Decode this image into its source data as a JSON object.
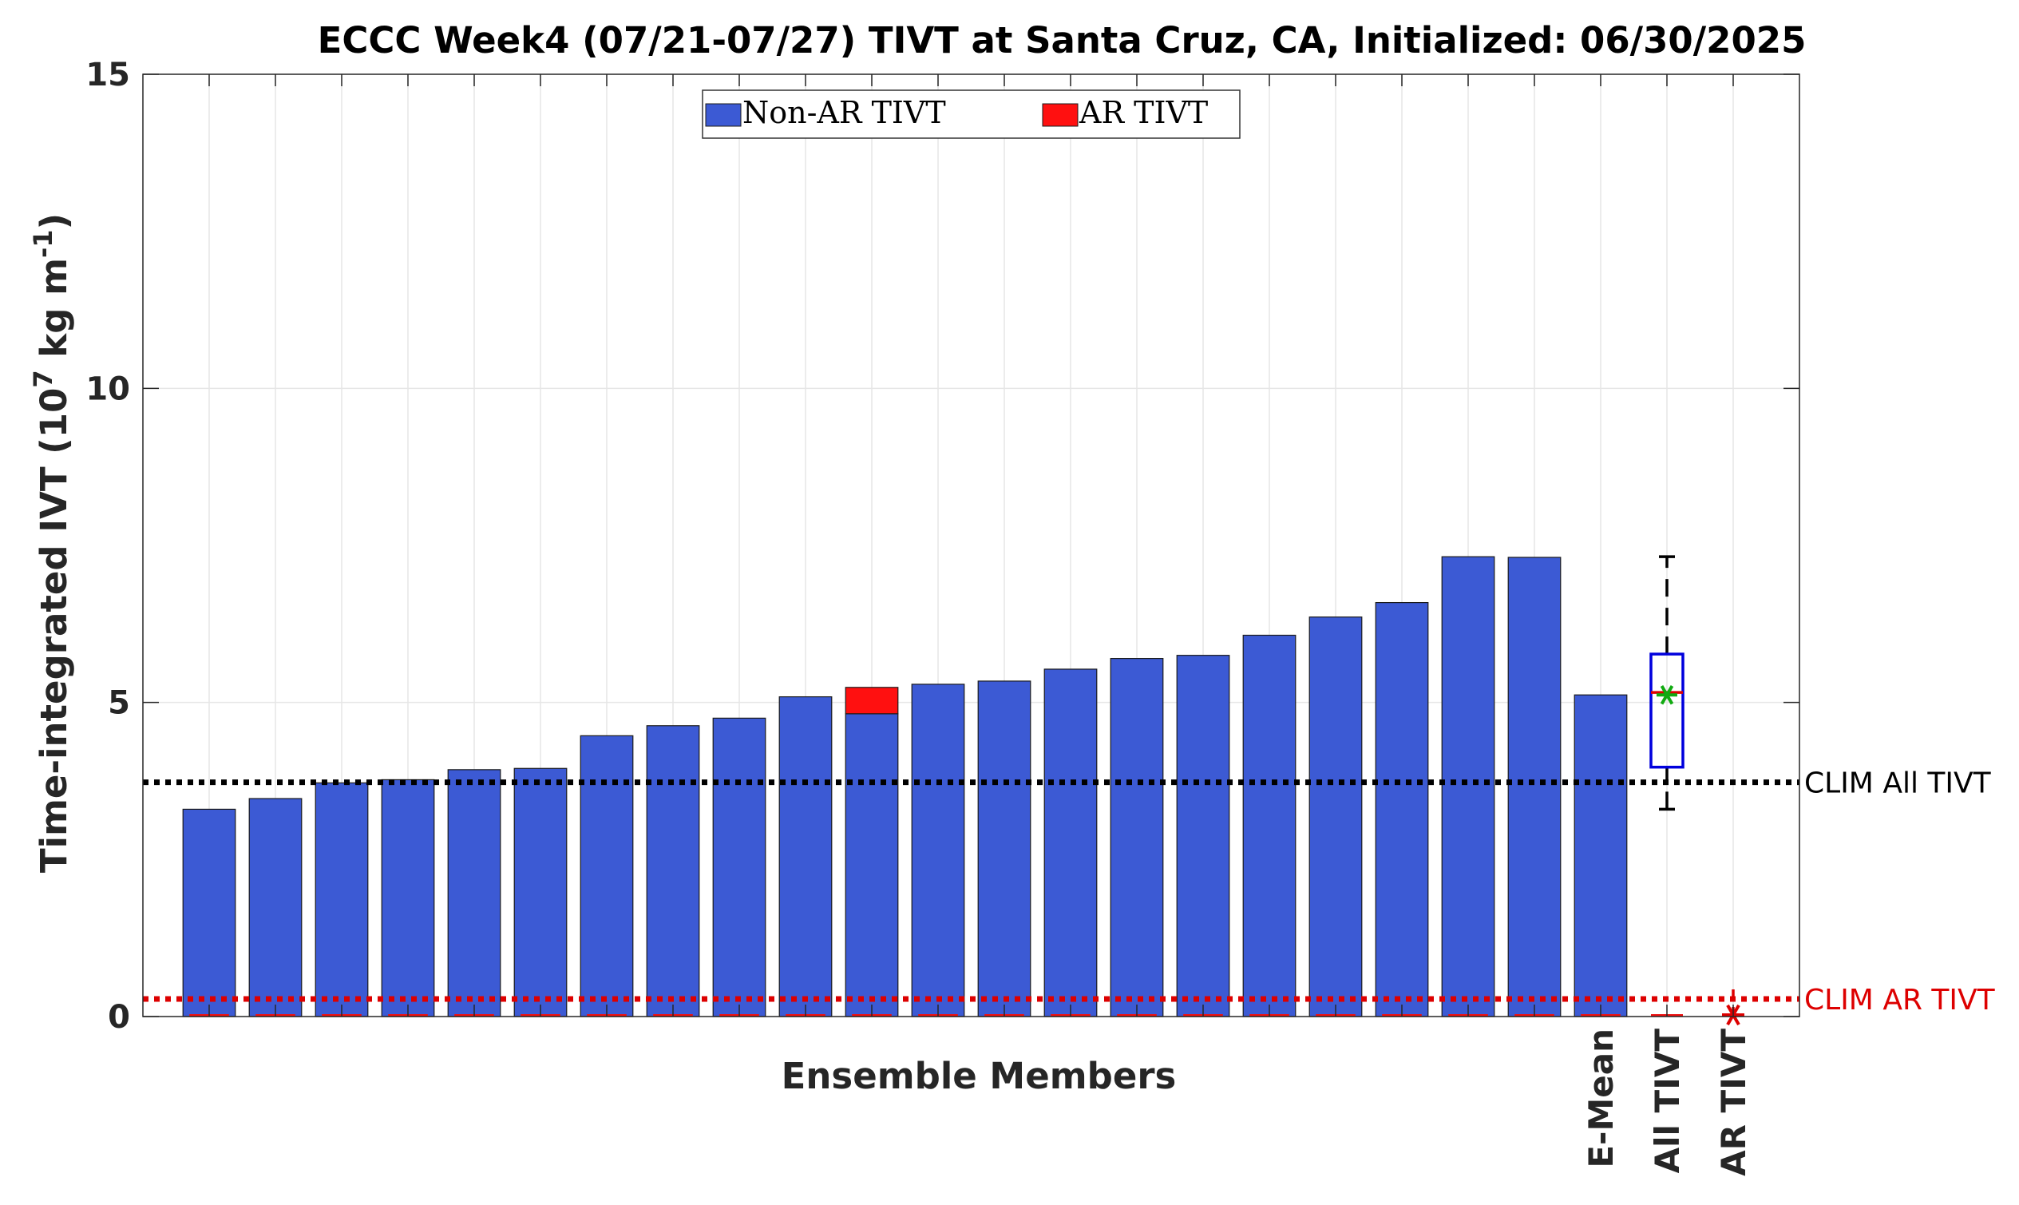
{
  "chart_data": {
    "type": "bar",
    "title": "ECCC Week4 (07/21-07/27) TIVT at Santa Cruz, CA, Initialized: 06/30/2025",
    "xlabel": "Ensemble Members",
    "ylabel": {
      "main": "Time-integrated IVT (10",
      "sup1": "7",
      "mid": " kg m",
      "sup2": "-1",
      "end": ")"
    },
    "ylim": [
      0,
      15
    ],
    "yticks": [
      0,
      5,
      10,
      15
    ],
    "grid": true,
    "legend": {
      "placement": "top-center",
      "entries": [
        {
          "label": "Non-AR TIVT",
          "color": "#3c5ad4"
        },
        {
          "label": "AR TIVT",
          "color": "#ff1010"
        }
      ]
    },
    "series": [
      {
        "name": "Non-AR TIVT",
        "color": "#3c5ad4",
        "values": [
          3.3,
          3.47,
          3.72,
          3.77,
          3.93,
          3.95,
          4.47,
          4.63,
          4.75,
          5.09,
          4.82,
          5.29,
          5.34,
          5.53,
          5.7,
          5.75,
          6.07,
          6.36,
          6.59,
          7.32,
          7.31,
          5.12
        ]
      },
      {
        "name": "AR TIVT",
        "color": "#ff1010",
        "values": [
          0,
          0,
          0,
          0,
          0,
          0,
          0,
          0,
          0,
          0,
          0.42,
          0,
          0,
          0,
          0,
          0,
          0,
          0,
          0,
          0,
          0,
          0
        ]
      }
    ],
    "category_labels": {
      "21": "E-Mean",
      "22": "All TIVT",
      "23": "AR TIVT"
    },
    "boxplot_all": {
      "min": 3.3,
      "q1": 3.97,
      "median": 5.16,
      "q3": 5.77,
      "max": 7.32,
      "mean": 5.12
    },
    "boxplot_ar": {
      "value": 0,
      "whisker_max": 0.5
    },
    "reference_lines": [
      {
        "label": "CLIM All TIVT",
        "value": 3.73,
        "color": "#000000"
      },
      {
        "label": "CLIM AR TIVT",
        "value": 0.28,
        "color": "#dd0000"
      }
    ]
  }
}
